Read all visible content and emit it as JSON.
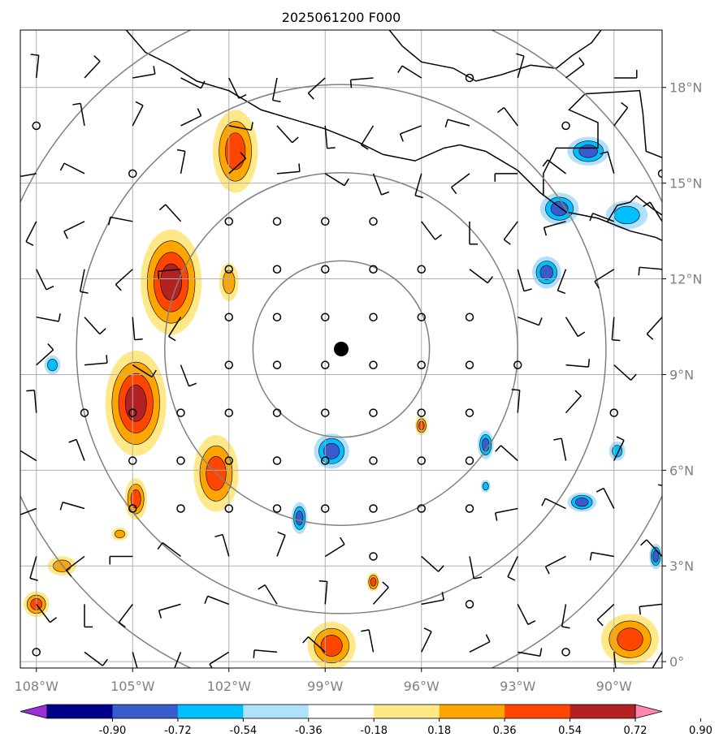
{
  "title": "2025061200 F000",
  "map": {
    "lon_range": [
      -108.5,
      -88.5
    ],
    "lat_range": [
      -0.2,
      19.8
    ],
    "lon_ticks": [
      {
        "value": -108,
        "label": "108°W"
      },
      {
        "value": -105,
        "label": "105°W"
      },
      {
        "value": -102,
        "label": "102°W"
      },
      {
        "value": -99,
        "label": "99°W"
      },
      {
        "value": -96,
        "label": "96°W"
      },
      {
        "value": -93,
        "label": "93°W"
      },
      {
        "value": -90,
        "label": "90°W"
      }
    ],
    "lat_ticks": [
      {
        "value": 0,
        "label": "0°"
      },
      {
        "value": 3,
        "label": "3°N"
      },
      {
        "value": 6,
        "label": "6°N"
      },
      {
        "value": 9,
        "label": "9°N"
      },
      {
        "value": 12,
        "label": "12°N"
      },
      {
        "value": 15,
        "label": "15°N"
      },
      {
        "value": 18,
        "label": "18°N"
      }
    ],
    "storm_center": {
      "lon": -98.5,
      "lat": 9.8
    },
    "range_rings_deg": [
      2.75,
      5.5,
      8.25,
      11.0
    ],
    "grid": true,
    "colors": {
      "ring": "#808080",
      "grid": "#b0b0b0",
      "coast": "#000000",
      "center": "#000000"
    }
  },
  "colorbar": {
    "levels": [
      "-0.90",
      "-0.72",
      "-0.54",
      "-0.36",
      "-0.18",
      "0.18",
      "0.36",
      "0.54",
      "0.72",
      "0.90"
    ],
    "colors": [
      "#9b30d8",
      "#00008b",
      "#3a5bcc",
      "#00bfff",
      "#b0e0fa",
      "#ffffff",
      "#ffe887",
      "#ffa500",
      "#ff4500",
      "#b22222",
      "#ff88b0"
    ],
    "extend": "both"
  },
  "fields": {
    "positive_patches": [
      {
        "center": [
          -101.8,
          16.0
        ],
        "size": [
          1.4,
          2.6
        ],
        "max_level": 2
      },
      {
        "center": [
          -103.8,
          11.9
        ],
        "size": [
          1.9,
          3.3
        ],
        "max_level": 3
      },
      {
        "center": [
          -102.0,
          11.9
        ],
        "size": [
          0.6,
          1.2
        ],
        "max_level": 1
      },
      {
        "center": [
          -104.9,
          8.1
        ],
        "size": [
          1.9,
          3.3
        ],
        "max_level": 3
      },
      {
        "center": [
          -104.9,
          5.1
        ],
        "size": [
          0.7,
          1.3
        ],
        "max_level": 2
      },
      {
        "center": [
          -102.4,
          5.9
        ],
        "size": [
          1.4,
          2.4
        ],
        "max_level": 2
      },
      {
        "center": [
          -98.8,
          0.5
        ],
        "size": [
          1.5,
          1.5
        ],
        "max_level": 2
      },
      {
        "center": [
          -89.5,
          0.7
        ],
        "size": [
          1.8,
          1.6
        ],
        "max_level": 2
      },
      {
        "center": [
          -108.0,
          1.8
        ],
        "size": [
          0.8,
          0.8
        ],
        "max_level": 2
      },
      {
        "center": [
          -107.2,
          3.0
        ],
        "size": [
          0.9,
          0.6
        ],
        "max_level": 1
      },
      {
        "center": [
          -105.4,
          4.0
        ],
        "size": [
          0.5,
          0.4
        ],
        "max_level": 1
      },
      {
        "center": [
          -96.0,
          7.4
        ],
        "size": [
          0.4,
          0.6
        ],
        "max_level": 2
      },
      {
        "center": [
          -97.5,
          2.5
        ],
        "size": [
          0.4,
          0.6
        ],
        "max_level": 2
      }
    ],
    "negative_patches": [
      {
        "center": [
          -90.8,
          16.0
        ],
        "size": [
          1.3,
          0.9
        ],
        "max_level": 2
      },
      {
        "center": [
          -91.7,
          14.2
        ],
        "size": [
          1.2,
          1.0
        ],
        "max_level": 2
      },
      {
        "center": [
          -89.6,
          14.0
        ],
        "size": [
          1.3,
          0.9
        ],
        "max_level": 1
      },
      {
        "center": [
          -92.1,
          12.2
        ],
        "size": [
          0.9,
          1.0
        ],
        "max_level": 2
      },
      {
        "center": [
          -98.8,
          6.6
        ],
        "size": [
          1.1,
          1.1
        ],
        "max_level": 2
      },
      {
        "center": [
          -99.8,
          4.5
        ],
        "size": [
          0.5,
          1.0
        ],
        "max_level": 2
      },
      {
        "center": [
          -94.0,
          6.8
        ],
        "size": [
          0.5,
          0.9
        ],
        "max_level": 2
      },
      {
        "center": [
          -94.0,
          5.5
        ],
        "size": [
          0.3,
          0.4
        ],
        "max_level": 1
      },
      {
        "center": [
          -91.0,
          5.0
        ],
        "size": [
          0.9,
          0.6
        ],
        "max_level": 2
      },
      {
        "center": [
          -89.9,
          6.6
        ],
        "size": [
          0.5,
          0.6
        ],
        "max_level": 1
      },
      {
        "center": [
          -107.5,
          9.3
        ],
        "size": [
          0.5,
          0.6
        ],
        "max_level": 1
      },
      {
        "center": [
          -88.7,
          3.3
        ],
        "size": [
          0.4,
          0.8
        ],
        "max_level": 2
      }
    ],
    "coastlines": [
      [
        [
          -105.2,
          19.8
        ],
        [
          -104.6,
          19.1
        ],
        [
          -103.8,
          18.7
        ],
        [
          -103.0,
          18.2
        ],
        [
          -102.0,
          17.9
        ],
        [
          -101.0,
          17.3
        ],
        [
          -100.0,
          17.0
        ],
        [
          -99.0,
          16.7
        ],
        [
          -98.0,
          16.3
        ],
        [
          -97.2,
          15.9
        ],
        [
          -96.2,
          15.7
        ],
        [
          -95.3,
          16.1
        ],
        [
          -94.8,
          16.2
        ],
        [
          -94.0,
          16.0
        ],
        [
          -93.0,
          15.4
        ],
        [
          -92.3,
          14.7
        ],
        [
          -91.5,
          14.1
        ],
        [
          -90.5,
          13.9
        ],
        [
          -89.5,
          13.5
        ],
        [
          -88.7,
          13.3
        ],
        [
          -88.5,
          13.2
        ]
      ],
      [
        [
          -97.0,
          19.8
        ],
        [
          -96.6,
          19.3
        ],
        [
          -96.0,
          18.8
        ],
        [
          -95.0,
          18.6
        ],
        [
          -94.3,
          18.2
        ],
        [
          -93.5,
          18.4
        ],
        [
          -92.6,
          18.7
        ],
        [
          -91.8,
          18.6
        ],
        [
          -91.3,
          19.0
        ],
        [
          -90.7,
          19.4
        ],
        [
          -90.4,
          19.8
        ]
      ],
      [
        [
          -92.2,
          14.6
        ],
        [
          -92.2,
          15.3
        ],
        [
          -91.8,
          16.1
        ],
        [
          -90.5,
          16.1
        ],
        [
          -90.5,
          16.9
        ],
        [
          -91.4,
          17.3
        ],
        [
          -90.9,
          17.8
        ],
        [
          -89.2,
          17.9
        ],
        [
          -89.1,
          17.2
        ],
        [
          -89.0,
          16.0
        ],
        [
          -88.5,
          15.8
        ]
      ],
      [
        [
          -90.2,
          13.8
        ],
        [
          -89.9,
          14.3
        ],
        [
          -89.5,
          14.4
        ],
        [
          -89.3,
          14.6
        ],
        [
          -88.8,
          14.2
        ],
        [
          -88.5,
          14.0
        ]
      ]
    ]
  }
}
